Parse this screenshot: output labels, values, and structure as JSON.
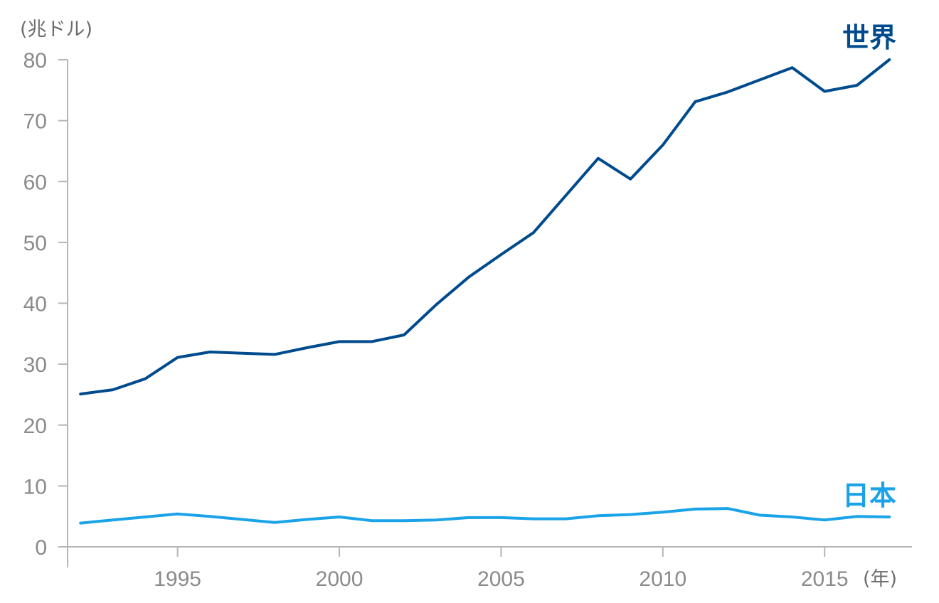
{
  "chart_data": {
    "type": "line",
    "title": "",
    "xlabel": "",
    "ylabel": "",
    "y_unit": "(兆ドル)",
    "x_unit": "(年)",
    "ylim": [
      0,
      80
    ],
    "xlim": [
      1991.6,
      2017.7
    ],
    "y_ticks": [
      0,
      10,
      20,
      30,
      40,
      50,
      60,
      70,
      80
    ],
    "x_ticks": [
      1995,
      2000,
      2005,
      2010,
      2015
    ],
    "grid": false,
    "legend": "inline-labels",
    "x": [
      1992,
      1993,
      1994,
      1995,
      1996,
      1997,
      1998,
      1999,
      2000,
      2001,
      2002,
      2003,
      2004,
      2005,
      2006,
      2007,
      2008,
      2009,
      2010,
      2011,
      2012,
      2013,
      2014,
      2015,
      2016,
      2017
    ],
    "series": [
      {
        "name": "世界",
        "color": "#004b8d",
        "values": [
          25.1,
          25.8,
          27.6,
          31.1,
          32.0,
          31.8,
          31.6,
          32.7,
          33.7,
          33.7,
          34.8,
          39.8,
          44.3,
          48.0,
          51.6,
          57.7,
          63.8,
          60.4,
          66.0,
          73.1,
          74.7,
          76.7,
          78.7,
          74.8,
          75.8,
          80.0
        ]
      },
      {
        "name": "日本",
        "color": "#1aa3e8",
        "values": [
          3.9,
          4.4,
          4.9,
          5.4,
          5.0,
          4.5,
          4.0,
          4.5,
          4.9,
          4.3,
          4.3,
          4.4,
          4.8,
          4.8,
          4.6,
          4.6,
          5.1,
          5.3,
          5.7,
          6.2,
          6.3,
          5.2,
          4.9,
          4.4,
          5.0,
          4.9
        ]
      }
    ]
  }
}
